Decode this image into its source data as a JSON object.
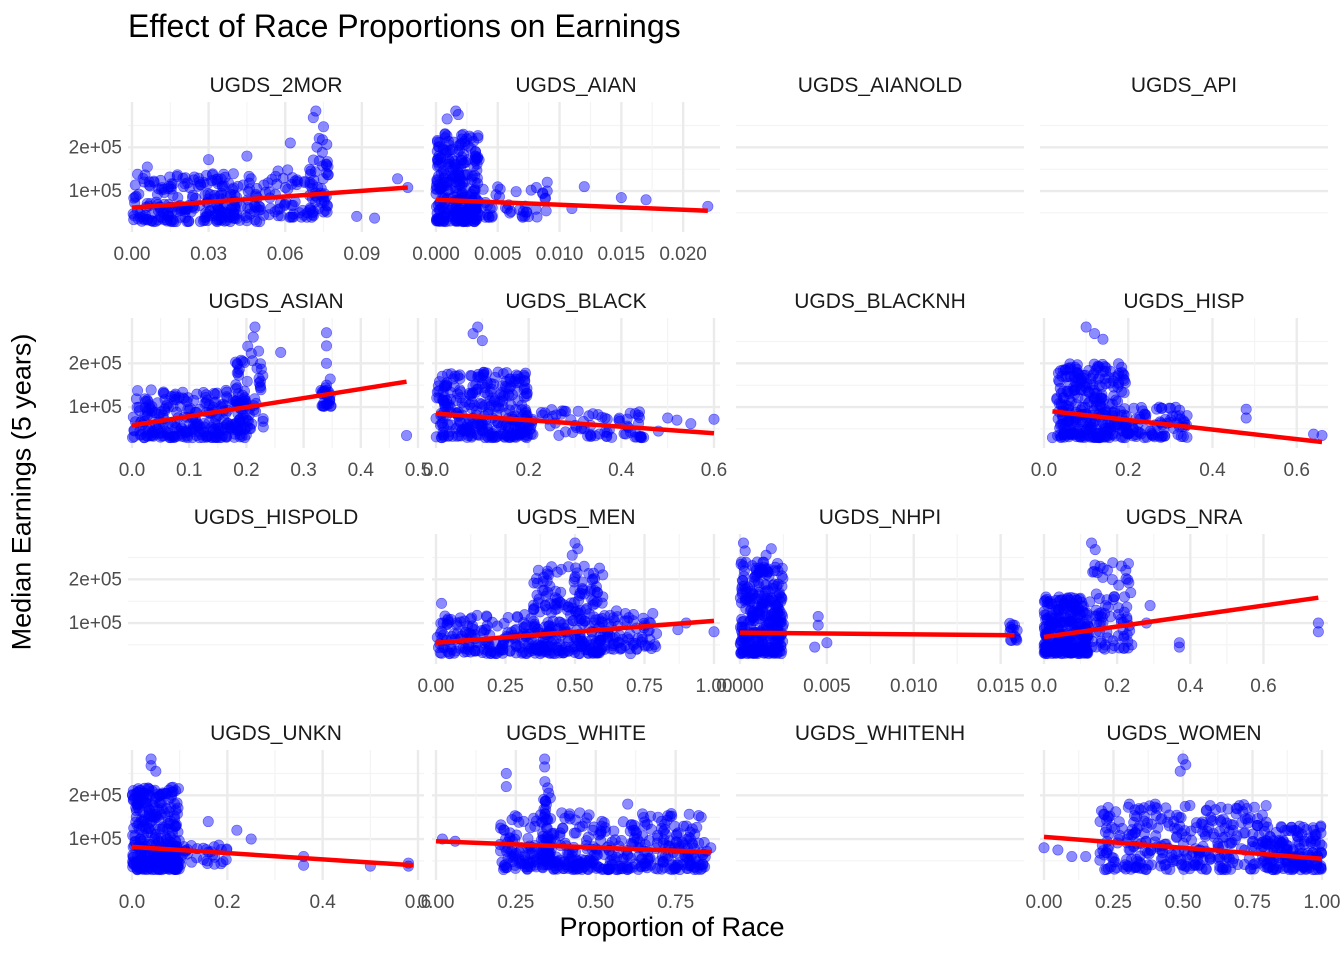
{
  "colors": {
    "point": "#0000ff",
    "trend_line": "#ff0000",
    "grid_major": "#ebebeb",
    "grid_minor": "#f4f4f4",
    "text": "#4d4d4d"
  },
  "chart_data": {
    "type": "scatter",
    "title": "Effect of Race Proportions on Earnings",
    "xlabel": "Proportion of Race",
    "ylabel": "Median Earnings (5 years)",
    "y_ticks": [
      {
        "value": 100000,
        "label": "1e+05"
      },
      {
        "value": 200000,
        "label": "2e+05"
      }
    ],
    "ylim": [
      20000,
      290000
    ],
    "grid": true,
    "facet_layout": {
      "rows": 4,
      "cols": 4,
      "scales": "free_x"
    },
    "overlay": "linear trend line",
    "panels": [
      {
        "name": "UGDS_2MOR",
        "has_data": true,
        "xlim": [
          0,
          0.112
        ],
        "x_ticks": [
          0,
          0.03,
          0.06,
          0.09
        ],
        "x_tick_labels": [
          "0.00",
          "0.03",
          "0.06",
          "0.09"
        ],
        "trend": [
          [
            0,
            62000
          ],
          [
            0.108,
            108000
          ]
        ],
        "outliers": [
          [
            0.072,
            283000
          ],
          [
            0.071,
            268000
          ],
          [
            0.075,
            247000
          ],
          [
            0.104,
            128000
          ],
          [
            0.108,
            108000
          ],
          [
            0.088,
            42000
          ],
          [
            0.095,
            38000
          ],
          [
            0.05,
            30000
          ],
          [
            0.006,
            155000
          ],
          [
            0.03,
            172000
          ],
          [
            0.045,
            180000
          ],
          [
            0.062,
            210000
          ]
        ],
        "clusters": [
          {
            "x": [
              0,
              0.05
            ],
            "y": [
              30000,
              140000
            ],
            "n": 240
          },
          {
            "x": [
              0.05,
              0.072
            ],
            "y": [
              40000,
              150000
            ],
            "n": 60
          },
          {
            "x": [
              0.069,
              0.077
            ],
            "y": [
              50000,
              230000
            ],
            "n": 45
          }
        ]
      },
      {
        "name": "UGDS_AIAN",
        "has_data": true,
        "xlim": [
          0,
          0.0225
        ],
        "x_ticks": [
          0,
          0.005,
          0.01,
          0.015,
          0.02
        ],
        "x_tick_labels": [
          "0.000",
          "0.005",
          "0.010",
          "0.015",
          "0.020"
        ],
        "trend": [
          [
            0,
            80000
          ],
          [
            0.022,
            55000
          ]
        ],
        "outliers": [
          [
            0.0016,
            283000
          ],
          [
            0.0018,
            275000
          ],
          [
            0.0009,
            265000
          ],
          [
            0.009,
            120000
          ],
          [
            0.009,
            100000
          ],
          [
            0.012,
            110000
          ],
          [
            0.015,
            85000
          ],
          [
            0.017,
            80000
          ],
          [
            0.022,
            65000
          ],
          [
            0.011,
            60000
          ],
          [
            0.004,
            40000
          ]
        ],
        "clusters": [
          {
            "x": [
              0,
              0.0035
            ],
            "y": [
              30000,
              240000
            ],
            "n": 280
          },
          {
            "x": [
              0.0035,
              0.009
            ],
            "y": [
              40000,
              110000
            ],
            "n": 40
          }
        ]
      },
      {
        "name": "UGDS_AIANOLD",
        "has_data": false
      },
      {
        "name": "UGDS_API",
        "has_data": false
      },
      {
        "name": "UGDS_ASIAN",
        "has_data": true,
        "xlim": [
          0,
          0.5
        ],
        "x_ticks": [
          0,
          0.1,
          0.2,
          0.3,
          0.4,
          0.5
        ],
        "x_tick_labels": [
          "0.0",
          "0.1",
          "0.2",
          "0.3",
          "0.4",
          "0.5"
        ],
        "trend": [
          [
            0,
            58000
          ],
          [
            0.48,
            158000
          ]
        ],
        "outliers": [
          [
            0.215,
            283000
          ],
          [
            0.34,
            270000
          ],
          [
            0.48,
            35000
          ],
          [
            0.26,
            225000
          ],
          [
            0.212,
            260000
          ],
          [
            0.34,
            240000
          ],
          [
            0.34,
            200000
          ],
          [
            0.34,
            150000
          ],
          [
            0.34,
            130000
          ]
        ],
        "clusters": [
          {
            "x": [
              0,
              0.2
            ],
            "y": [
              30000,
              140000
            ],
            "n": 260
          },
          {
            "x": [
              0.18,
              0.23
            ],
            "y": [
              50000,
              240000
            ],
            "n": 60
          },
          {
            "x": [
              0.33,
              0.35
            ],
            "y": [
              100000,
              180000
            ],
            "n": 25
          }
        ]
      },
      {
        "name": "UGDS_BLACK",
        "has_data": true,
        "xlim": [
          0,
          0.6
        ],
        "x_ticks": [
          0,
          0.2,
          0.4,
          0.6
        ],
        "x_tick_labels": [
          "0.0",
          "0.2",
          "0.4",
          "0.6"
        ],
        "trend": [
          [
            0,
            85000
          ],
          [
            0.6,
            40000
          ]
        ],
        "outliers": [
          [
            0.09,
            283000
          ],
          [
            0.08,
            268000
          ],
          [
            0.1,
            252000
          ],
          [
            0.5,
            75000
          ],
          [
            0.52,
            70000
          ],
          [
            0.6,
            72000
          ],
          [
            0.55,
            62000
          ],
          [
            0.43,
            85000
          ],
          [
            0.42,
            42000
          ],
          [
            0.48,
            45000
          ],
          [
            0.33,
            80000
          ],
          [
            0.28,
            90000
          ]
        ],
        "clusters": [
          {
            "x": [
              0,
              0.2
            ],
            "y": [
              30000,
              180000
            ],
            "n": 300
          },
          {
            "x": [
              0.2,
              0.45
            ],
            "y": [
              30000,
              95000
            ],
            "n": 70
          }
        ]
      },
      {
        "name": "UGDS_BLACKNH",
        "has_data": false
      },
      {
        "name": "UGDS_HISP",
        "has_data": true,
        "xlim": [
          0,
          0.66
        ],
        "x_ticks": [
          0,
          0.2,
          0.4,
          0.6
        ],
        "x_tick_labels": [
          "0.0",
          "0.2",
          "0.4",
          "0.6"
        ],
        "trend": [
          [
            0.02,
            90000
          ],
          [
            0.66,
            20000
          ]
        ],
        "outliers": [
          [
            0.1,
            283000
          ],
          [
            0.12,
            268000
          ],
          [
            0.14,
            255000
          ],
          [
            0.48,
            95000
          ],
          [
            0.48,
            75000
          ],
          [
            0.66,
            35000
          ],
          [
            0.64,
            38000
          ],
          [
            0.33,
            55000
          ],
          [
            0.3,
            65000
          ],
          [
            0.02,
            30000
          ]
        ],
        "clusters": [
          {
            "x": [
              0.03,
              0.2
            ],
            "y": [
              30000,
              200000
            ],
            "n": 300
          },
          {
            "x": [
              0.2,
              0.34
            ],
            "y": [
              30000,
              100000
            ],
            "n": 70
          }
        ]
      },
      {
        "name": "UGDS_HISPOLD",
        "has_data": false
      },
      {
        "name": "UGDS_MEN",
        "has_data": true,
        "xlim": [
          0,
          1
        ],
        "x_ticks": [
          0,
          0.25,
          0.5,
          0.75,
          1
        ],
        "x_tick_labels": [
          "0.00",
          "0.25",
          "0.50",
          "0.75",
          "1.00"
        ],
        "trend": [
          [
            0,
            55000
          ],
          [
            1,
            105000
          ]
        ],
        "outliers": [
          [
            0.5,
            283000
          ],
          [
            0.51,
            270000
          ],
          [
            0.49,
            255000
          ],
          [
            0.02,
            145000
          ],
          [
            1,
            80000
          ],
          [
            0.87,
            85000
          ],
          [
            0.9,
            100000
          ],
          [
            0.7,
            30000
          ],
          [
            0.05,
            30000
          ],
          [
            0.6,
            160000
          ]
        ],
        "clusters": [
          {
            "x": [
              0,
              0.35
            ],
            "y": [
              30000,
              120000
            ],
            "n": 150
          },
          {
            "x": [
              0.35,
              0.6
            ],
            "y": [
              30000,
              230000
            ],
            "n": 250
          },
          {
            "x": [
              0.6,
              0.8
            ],
            "y": [
              40000,
              130000
            ],
            "n": 70
          }
        ]
      },
      {
        "name": "UGDS_NHPI",
        "has_data": true,
        "xlim": [
          0,
          0.016
        ],
        "x_ticks": [
          0,
          0.005,
          0.01,
          0.015
        ],
        "x_tick_labels": [
          "0.000",
          "0.005",
          "0.010",
          "0.015"
        ],
        "trend": [
          [
            0,
            78000
          ],
          [
            0.0158,
            72000
          ]
        ],
        "outliers": [
          [
            0.0002,
            283000
          ],
          [
            0.0003,
            265000
          ],
          [
            0.0018,
            270000
          ],
          [
            0.0015,
            255000
          ],
          [
            0.0045,
            115000
          ],
          [
            0.0045,
            95000
          ],
          [
            0.0043,
            45000
          ],
          [
            0.005,
            55000
          ],
          [
            0.0158,
            95000
          ],
          [
            0.0158,
            70000
          ]
        ],
        "clusters": [
          {
            "x": [
              0,
              0.0025
            ],
            "y": [
              30000,
              240000
            ],
            "n": 300
          },
          {
            "x": [
              0.0155,
              0.016
            ],
            "y": [
              60000,
              100000
            ],
            "n": 12
          }
        ]
      },
      {
        "name": "UGDS_NRA",
        "has_data": true,
        "xlim": [
          0,
          0.76
        ],
        "x_ticks": [
          0,
          0.2,
          0.4,
          0.6
        ],
        "x_tick_labels": [
          "0.0",
          "0.2",
          "0.4",
          "0.6"
        ],
        "trend": [
          [
            0,
            68000
          ],
          [
            0.75,
            158000
          ]
        ],
        "outliers": [
          [
            0.13,
            283000
          ],
          [
            0.14,
            268000
          ],
          [
            0.29,
            140000
          ],
          [
            0.28,
            100000
          ],
          [
            0.37,
            55000
          ],
          [
            0.37,
            45000
          ],
          [
            0.75,
            100000
          ],
          [
            0.75,
            80000
          ],
          [
            0.22,
            160000
          ],
          [
            0.24,
            50000
          ]
        ],
        "clusters": [
          {
            "x": [
              0,
              0.12
            ],
            "y": [
              30000,
              160000
            ],
            "n": 280
          },
          {
            "x": [
              0.12,
              0.24
            ],
            "y": [
              40000,
              240000
            ],
            "n": 80
          }
        ]
      },
      {
        "name": "UGDS_UNKN",
        "has_data": true,
        "xlim": [
          0,
          0.6
        ],
        "x_ticks": [
          0,
          0.2,
          0.4,
          0.6
        ],
        "x_tick_labels": [
          "0.0",
          "0.2",
          "0.4",
          "0.6"
        ],
        "trend": [
          [
            0,
            82000
          ],
          [
            0.59,
            40000
          ]
        ],
        "outliers": [
          [
            0.04,
            283000
          ],
          [
            0.04,
            268000
          ],
          [
            0.05,
            255000
          ],
          [
            0.16,
            140000
          ],
          [
            0.22,
            120000
          ],
          [
            0.25,
            100000
          ],
          [
            0.36,
            60000
          ],
          [
            0.36,
            40000
          ],
          [
            0.5,
            38000
          ],
          [
            0.58,
            45000
          ],
          [
            0.58,
            38000
          ]
        ],
        "clusters": [
          {
            "x": [
              0,
              0.1
            ],
            "y": [
              30000,
              220000
            ],
            "n": 320
          },
          {
            "x": [
              0.1,
              0.2
            ],
            "y": [
              40000,
              100000
            ],
            "n": 30
          }
        ]
      },
      {
        "name": "UGDS_WHITE",
        "has_data": true,
        "xlim": [
          0,
          0.87
        ],
        "x_ticks": [
          0,
          0.25,
          0.5,
          0.75
        ],
        "x_tick_labels": [
          "0.00",
          "0.25",
          "0.50",
          "0.75"
        ],
        "trend": [
          [
            0,
            95000
          ],
          [
            0.86,
            70000
          ]
        ],
        "outliers": [
          [
            0.34,
            283000
          ],
          [
            0.34,
            265000
          ],
          [
            0.22,
            250000
          ],
          [
            0.22,
            220000
          ],
          [
            0.02,
            100000
          ],
          [
            0.06,
            95000
          ],
          [
            0.45,
            160000
          ],
          [
            0.6,
            180000
          ],
          [
            0.83,
            150000
          ],
          [
            0.86,
            80000
          ]
        ],
        "clusters": [
          {
            "x": [
              0.2,
              0.85
            ],
            "y": [
              30000,
              160000
            ],
            "n": 420
          },
          {
            "x": [
              0.33,
              0.36
            ],
            "y": [
              40000,
              250000
            ],
            "n": 40
          }
        ]
      },
      {
        "name": "UGDS_WHITENH",
        "has_data": false
      },
      {
        "name": "UGDS_WOMEN",
        "has_data": true,
        "xlim": [
          0,
          1
        ],
        "x_ticks": [
          0,
          0.25,
          0.5,
          0.75,
          1
        ],
        "x_tick_labels": [
          "0.00",
          "0.25",
          "0.50",
          "0.75",
          "1.00"
        ],
        "trend": [
          [
            0,
            105000
          ],
          [
            1,
            55000
          ]
        ],
        "outliers": [
          [
            0.5,
            283000
          ],
          [
            0.51,
            270000
          ],
          [
            0.49,
            255000
          ],
          [
            0,
            80000
          ],
          [
            0.05,
            75000
          ],
          [
            0.1,
            60000
          ],
          [
            0.15,
            60000
          ],
          [
            0.3,
            100000
          ],
          [
            0.4,
            180000
          ],
          [
            0.6,
            150000
          ]
        ],
        "clusters": [
          {
            "x": [
              0.2,
              0.8
            ],
            "y": [
              30000,
              180000
            ],
            "n": 300
          },
          {
            "x": [
              0.8,
              1
            ],
            "y": [
              30000,
              130000
            ],
            "n": 150
          }
        ]
      }
    ]
  }
}
